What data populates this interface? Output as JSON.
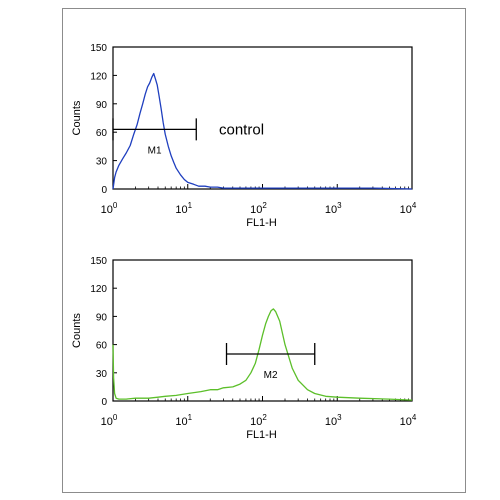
{
  "chart_data": [
    {
      "type": "line",
      "xlabel": "FL1-H",
      "ylabel": "Counts",
      "x_scale": "log",
      "xlim": [
        1,
        10000
      ],
      "ylim": [
        0,
        150
      ],
      "yticks": [
        "0",
        "30",
        "60",
        "90",
        "120",
        "150"
      ],
      "xticks": [
        {
          "base": "10",
          "exp": "0"
        },
        {
          "base": "10",
          "exp": "1"
        },
        {
          "base": "10",
          "exp": "2"
        },
        {
          "base": "10",
          "exp": "3"
        },
        {
          "base": "10",
          "exp": "4"
        }
      ],
      "annotation": "control",
      "gate": {
        "label": "M1",
        "range": [
          1,
          13
        ],
        "level": 63
      },
      "color": "#1f3fbf",
      "series": [
        {
          "x": [
            1,
            1.05,
            1.1,
            1.2,
            1.35,
            1.5,
            1.7,
            1.9,
            2.1,
            2.3,
            2.5,
            2.7,
            2.9,
            3.1,
            3.3,
            3.5,
            3.7,
            3.9,
            4.1,
            4.4,
            4.7,
            5,
            5.5,
            6,
            6.5,
            7,
            8,
            9,
            10,
            12,
            14,
            17,
            20,
            25,
            30,
            40,
            60,
            100,
            200,
            500,
            1000,
            3000,
            10000
          ],
          "y": [
            0,
            12,
            18,
            25,
            32,
            38,
            46,
            58,
            68,
            80,
            90,
            100,
            108,
            112,
            118,
            122,
            116,
            110,
            100,
            85,
            70,
            58,
            45,
            35,
            28,
            22,
            15,
            10,
            7,
            5,
            3,
            3,
            2,
            2,
            1,
            1,
            1,
            1,
            1,
            1,
            1,
            1,
            0
          ]
        }
      ]
    },
    {
      "type": "line",
      "xlabel": "FL1-H",
      "ylabel": "Counts",
      "x_scale": "log",
      "xlim": [
        1,
        10000
      ],
      "ylim": [
        0,
        150
      ],
      "yticks": [
        "0",
        "30",
        "60",
        "90",
        "120",
        "150"
      ],
      "xticks": [
        {
          "base": "10",
          "exp": "0"
        },
        {
          "base": "10",
          "exp": "1"
        },
        {
          "base": "10",
          "exp": "2"
        },
        {
          "base": "10",
          "exp": "3"
        },
        {
          "base": "10",
          "exp": "4"
        }
      ],
      "gate": {
        "label": "M2",
        "range": [
          33,
          500
        ],
        "level": 50
      },
      "color": "#5cbf2a",
      "series": [
        {
          "x": [
            1,
            1.02,
            1.05,
            1.1,
            1.2,
            1.5,
            2,
            3,
            4,
            5,
            7,
            10,
            15,
            20,
            25,
            30,
            40,
            50,
            60,
            70,
            80,
            90,
            100,
            110,
            120,
            130,
            140,
            150,
            170,
            200,
            250,
            300,
            400,
            500,
            700,
            1000,
            2000,
            5000,
            10000
          ],
          "y": [
            60,
            25,
            8,
            3,
            2,
            2,
            3,
            3,
            4,
            5,
            6,
            8,
            10,
            12,
            12,
            14,
            15,
            18,
            22,
            30,
            40,
            55,
            70,
            82,
            90,
            96,
            98,
            95,
            85,
            60,
            35,
            22,
            12,
            8,
            5,
            4,
            3,
            2,
            1
          ]
        }
      ]
    }
  ]
}
